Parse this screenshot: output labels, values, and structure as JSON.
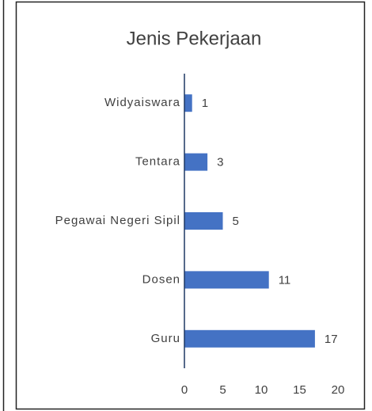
{
  "chart_data": {
    "type": "bar",
    "orientation": "horizontal",
    "title": "Jenis Pekerjaan",
    "categories": [
      "Widyaiswara",
      "Tentara",
      "Pegawai Negeri Sipil",
      "Dosen",
      "Guru"
    ],
    "values": [
      1,
      3,
      5,
      11,
      17
    ],
    "color": "#4472c4",
    "xlim": [
      0,
      20
    ],
    "xticks": [
      0,
      5,
      10,
      15,
      20
    ],
    "grid": false
  }
}
